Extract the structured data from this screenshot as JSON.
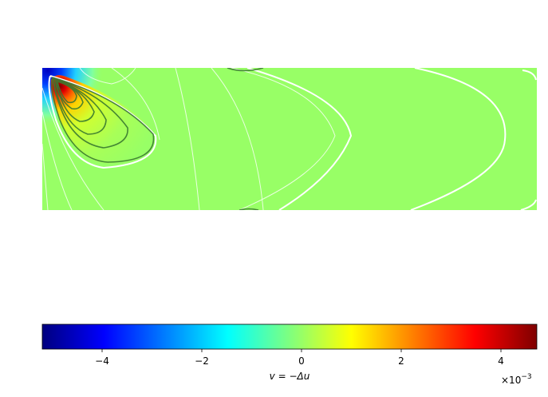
{
  "chart_data": {
    "type": "contour",
    "colormap": "jet",
    "colorbar": {
      "label": "v = −Δu",
      "clim": [
        -5.2,
        4.72
      ],
      "ticks": [
        {
          "value": -4,
          "label": "−4"
        },
        {
          "value": -2,
          "label": "−2"
        },
        0,
        2,
        4
      ],
      "offset": {
        "base": "×10",
        "exponent": "−3"
      }
    }
  }
}
